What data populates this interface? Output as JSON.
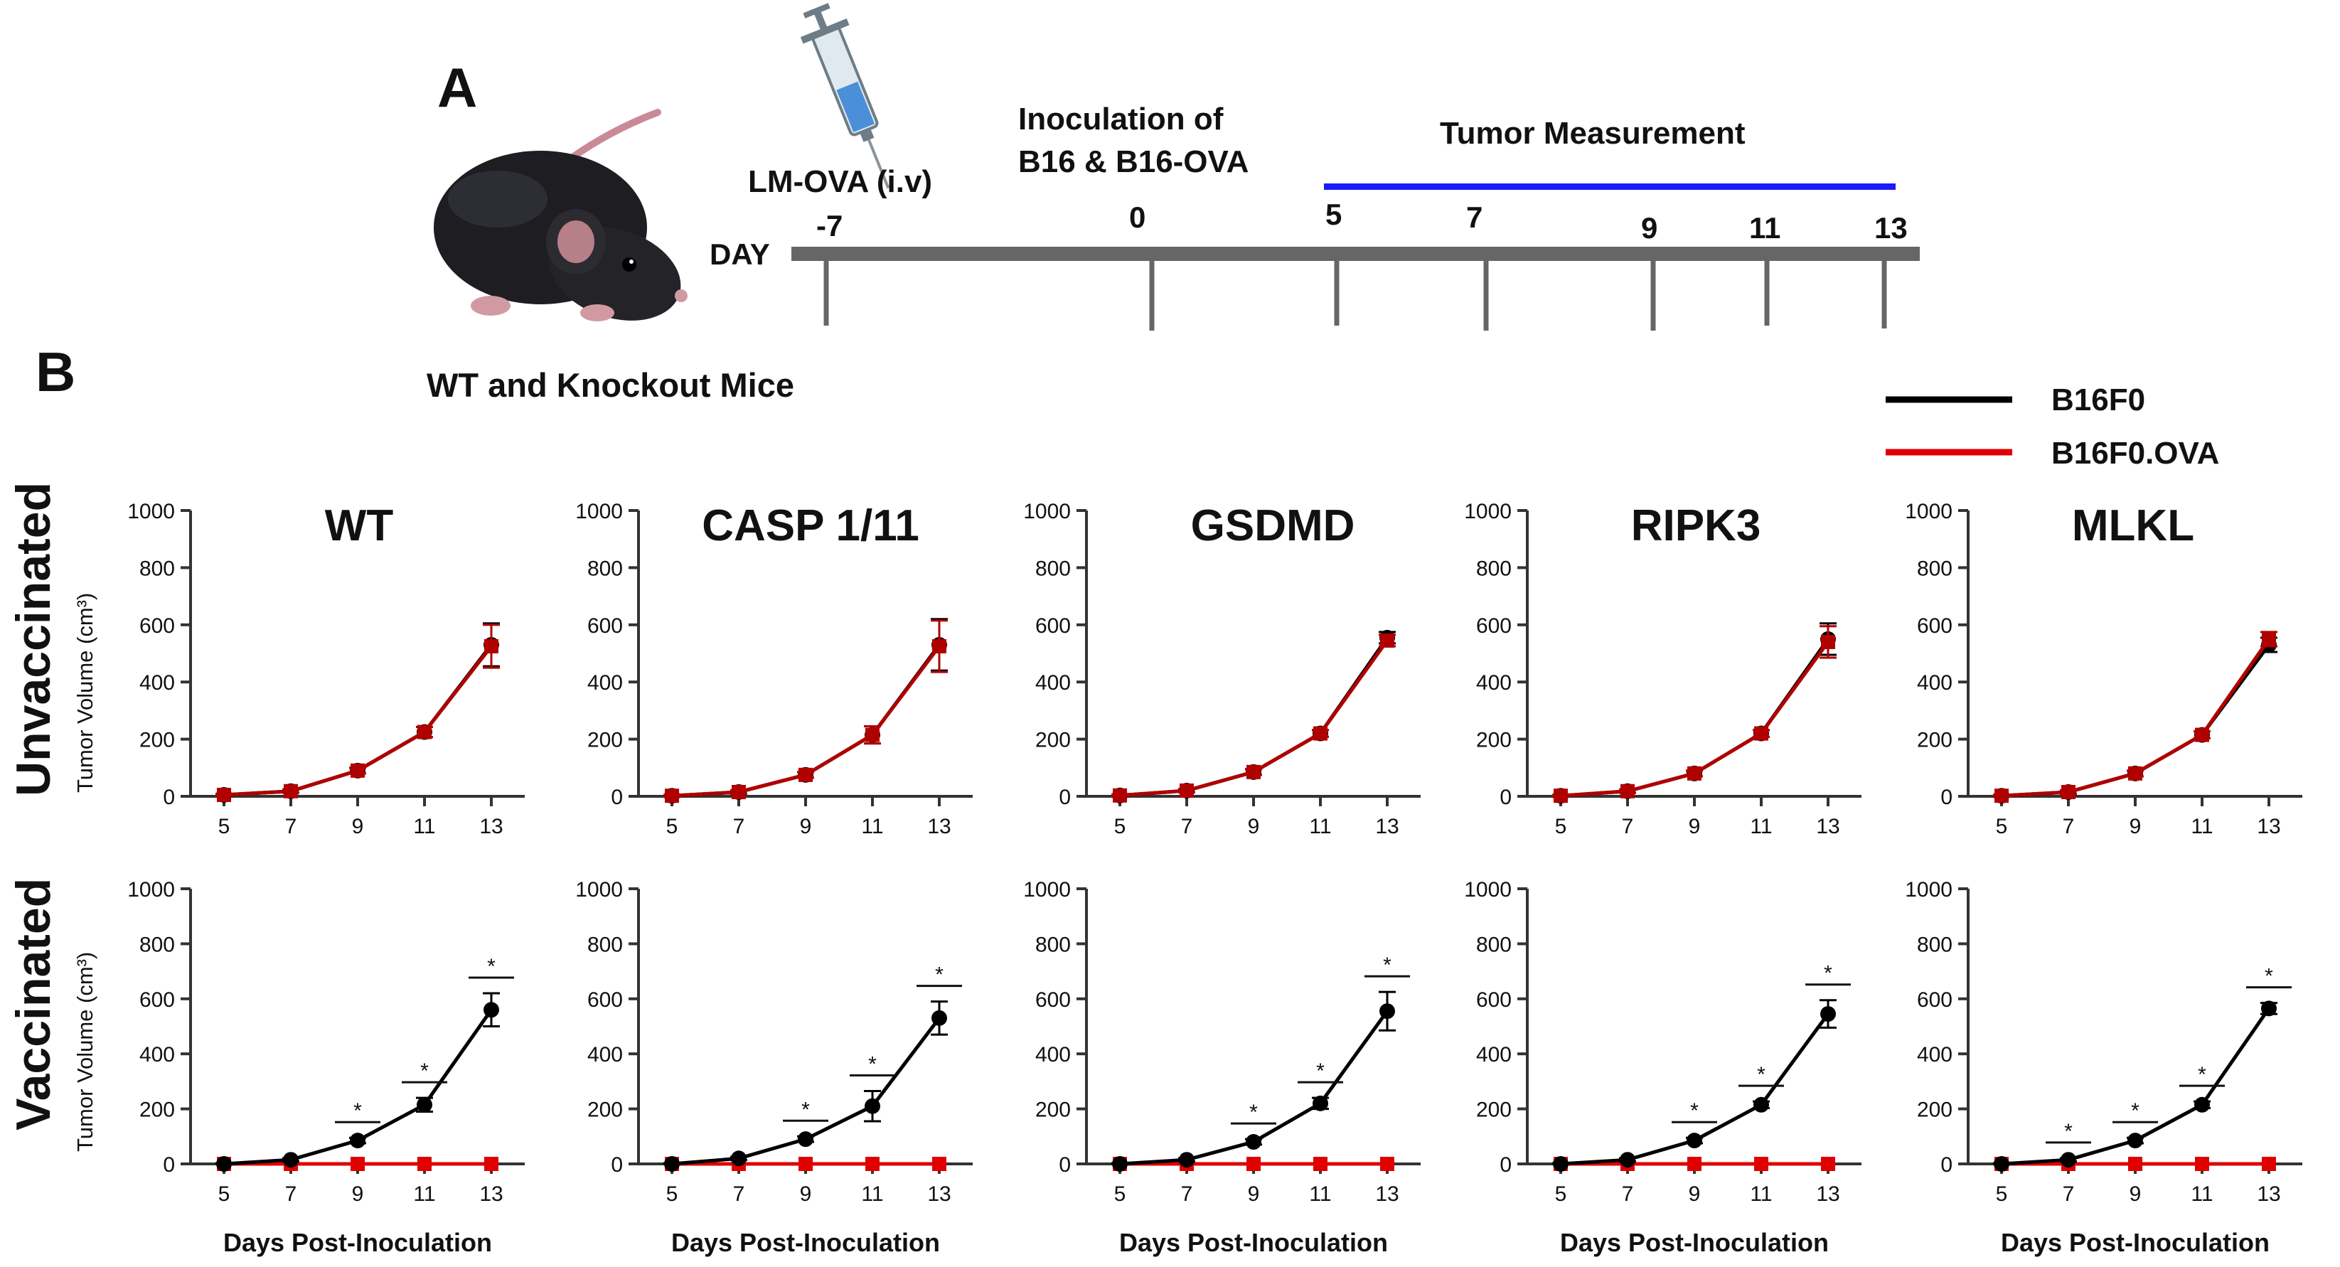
{
  "panel_a": {
    "letter": "A",
    "caption": "WT and Knockout Mice",
    "timeline": {
      "day_label": "DAY",
      "vaccine_label": "LM-OVA (i.v)",
      "inoculation_label_line1": "Inoculation of",
      "inoculation_label_line2": "B16 & B16-OVA",
      "measurement_label": "Tumor Measurement",
      "days": [
        "-7",
        "0",
        "5",
        "7",
        "9",
        "11",
        "13"
      ]
    }
  },
  "panel_b": {
    "letter": "B",
    "row_labels": [
      "Unvaccinated",
      "Vaccinated"
    ],
    "y_axis_label": "Tumor Volume (cm³)",
    "x_axis_label": "Days Post-Inoculation",
    "legend": [
      {
        "label": "B16F0",
        "color": "#000000"
      },
      {
        "label": "B16F0.OVA",
        "color": "#e00000"
      }
    ],
    "colors": {
      "b16f0": "#000000",
      "b16f0_ova": "#e00000",
      "b16f0_ova_unvaccinated": "#b00000",
      "timeline_bar": "#666666",
      "measurement_bar": "#1a1aff"
    },
    "star_symbol": "*"
  },
  "chart_data": [
    {
      "type": "line",
      "title": "WT",
      "group": "Unvaccinated",
      "x": [
        5,
        7,
        9,
        11,
        13
      ],
      "xlabel": "",
      "ylabel": "Tumor Volume (cm³)",
      "ylim": [
        0,
        1000
      ],
      "yticks": [
        0,
        200,
        400,
        600,
        800,
        1000
      ],
      "series": [
        {
          "name": "B16F0",
          "values": [
            5,
            18,
            90,
            225,
            530
          ],
          "errors": [
            3,
            6,
            10,
            18,
            75
          ]
        },
        {
          "name": "B16F0.OVA",
          "values": [
            5,
            18,
            90,
            225,
            525
          ],
          "errors": [
            3,
            6,
            10,
            18,
            75
          ]
        }
      ],
      "significant_at": []
    },
    {
      "type": "line",
      "title": "CASP 1/11",
      "group": "Unvaccinated",
      "x": [
        5,
        7,
        9,
        11,
        13
      ],
      "xlabel": "",
      "ylabel": "",
      "ylim": [
        0,
        1000
      ],
      "yticks": [
        0,
        200,
        400,
        600,
        800,
        1000
      ],
      "series": [
        {
          "name": "B16F0",
          "values": [
            2,
            15,
            75,
            215,
            530
          ],
          "errors": [
            3,
            6,
            10,
            30,
            90
          ]
        },
        {
          "name": "B16F0.OVA",
          "values": [
            2,
            15,
            75,
            215,
            525
          ],
          "errors": [
            3,
            6,
            10,
            30,
            90
          ]
        }
      ],
      "significant_at": []
    },
    {
      "type": "line",
      "title": "GSDMD",
      "group": "Unvaccinated",
      "x": [
        5,
        7,
        9,
        11,
        13
      ],
      "xlabel": "",
      "ylabel": "",
      "ylim": [
        0,
        1000
      ],
      "yticks": [
        0,
        200,
        400,
        600,
        800,
        1000
      ],
      "series": [
        {
          "name": "B16F0",
          "values": [
            3,
            20,
            85,
            220,
            555
          ],
          "errors": [
            3,
            6,
            10,
            12,
            20
          ]
        },
        {
          "name": "B16F0.OVA",
          "values": [
            3,
            20,
            85,
            220,
            545
          ],
          "errors": [
            3,
            6,
            10,
            12,
            20
          ]
        }
      ],
      "significant_at": []
    },
    {
      "type": "line",
      "title": "RIPK3",
      "group": "Unvaccinated",
      "x": [
        5,
        7,
        9,
        11,
        13
      ],
      "xlabel": "",
      "ylabel": "",
      "ylim": [
        0,
        1000
      ],
      "yticks": [
        0,
        200,
        400,
        600,
        800,
        1000
      ],
      "series": [
        {
          "name": "B16F0",
          "values": [
            2,
            18,
            80,
            220,
            550
          ],
          "errors": [
            3,
            6,
            10,
            12,
            55
          ]
        },
        {
          "name": "B16F0.OVA",
          "values": [
            2,
            18,
            80,
            220,
            540
          ],
          "errors": [
            3,
            6,
            10,
            12,
            55
          ]
        }
      ],
      "significant_at": []
    },
    {
      "type": "line",
      "title": "MLKL",
      "group": "Unvaccinated",
      "x": [
        5,
        7,
        9,
        11,
        13
      ],
      "xlabel": "",
      "ylabel": "",
      "ylim": [
        0,
        1000
      ],
      "yticks": [
        0,
        200,
        400,
        600,
        800,
        1000
      ],
      "series": [
        {
          "name": "B16F0",
          "values": [
            2,
            15,
            80,
            215,
            530
          ],
          "errors": [
            3,
            6,
            10,
            12,
            25
          ]
        },
        {
          "name": "B16F0.OVA",
          "values": [
            2,
            15,
            80,
            215,
            550
          ],
          "errors": [
            3,
            6,
            10,
            12,
            25
          ]
        }
      ],
      "significant_at": []
    },
    {
      "type": "line",
      "title": "",
      "group": "Vaccinated",
      "x": [
        5,
        7,
        9,
        11,
        13
      ],
      "xlabel": "Days Post-Inoculation",
      "ylabel": "Tumor Volume (cm³)",
      "ylim": [
        0,
        1000
      ],
      "yticks": [
        0,
        200,
        400,
        600,
        800,
        1000
      ],
      "series": [
        {
          "name": "B16F0",
          "values": [
            0,
            15,
            85,
            215,
            560
          ],
          "errors": [
            3,
            6,
            10,
            25,
            60
          ]
        },
        {
          "name": "B16F0.OVA",
          "values": [
            0,
            0,
            0,
            0,
            0
          ],
          "errors": [
            0,
            0,
            0,
            0,
            0
          ]
        }
      ],
      "significant_at": [
        9,
        11,
        13
      ]
    },
    {
      "type": "line",
      "title": "",
      "group": "Vaccinated",
      "x": [
        5,
        7,
        9,
        11,
        13
      ],
      "xlabel": "Days Post-Inoculation",
      "ylabel": "",
      "ylim": [
        0,
        1000
      ],
      "yticks": [
        0,
        200,
        400,
        600,
        800,
        1000
      ],
      "series": [
        {
          "name": "B16F0",
          "values": [
            0,
            20,
            90,
            210,
            530
          ],
          "errors": [
            3,
            6,
            10,
            55,
            60
          ]
        },
        {
          "name": "B16F0.OVA",
          "values": [
            0,
            0,
            0,
            0,
            0
          ],
          "errors": [
            0,
            0,
            0,
            0,
            0
          ]
        }
      ],
      "significant_at": [
        9,
        11,
        13
      ]
    },
    {
      "type": "line",
      "title": "",
      "group": "Vaccinated",
      "x": [
        5,
        7,
        9,
        11,
        13
      ],
      "xlabel": "Days Post-Inoculation",
      "ylabel": "",
      "ylim": [
        0,
        1000
      ],
      "yticks": [
        0,
        200,
        400,
        600,
        800,
        1000
      ],
      "series": [
        {
          "name": "B16F0",
          "values": [
            0,
            15,
            80,
            220,
            555
          ],
          "errors": [
            3,
            6,
            10,
            20,
            70
          ]
        },
        {
          "name": "B16F0.OVA",
          "values": [
            0,
            0,
            0,
            0,
            0
          ],
          "errors": [
            0,
            0,
            0,
            0,
            0
          ]
        }
      ],
      "significant_at": [
        9,
        11,
        13
      ]
    },
    {
      "type": "line",
      "title": "",
      "group": "Vaccinated",
      "x": [
        5,
        7,
        9,
        11,
        13
      ],
      "xlabel": "Days Post-Inoculation",
      "ylabel": "",
      "ylim": [
        0,
        1000
      ],
      "yticks": [
        0,
        200,
        400,
        600,
        800,
        1000
      ],
      "series": [
        {
          "name": "B16F0",
          "values": [
            0,
            15,
            85,
            215,
            545
          ],
          "errors": [
            3,
            6,
            10,
            12,
            50
          ]
        },
        {
          "name": "B16F0.OVA",
          "values": [
            0,
            0,
            0,
            0,
            0
          ],
          "errors": [
            0,
            0,
            0,
            0,
            0
          ]
        }
      ],
      "significant_at": [
        9,
        11,
        13
      ]
    },
    {
      "type": "line",
      "title": "",
      "group": "Vaccinated",
      "x": [
        5,
        7,
        9,
        11,
        13
      ],
      "xlabel": "Days Post-Inoculation",
      "ylabel": "",
      "ylim": [
        0,
        1000
      ],
      "yticks": [
        0,
        200,
        400,
        600,
        800,
        1000
      ],
      "series": [
        {
          "name": "B16F0",
          "values": [
            0,
            15,
            85,
            215,
            565
          ],
          "errors": [
            3,
            6,
            10,
            12,
            20
          ]
        },
        {
          "name": "B16F0.OVA",
          "values": [
            0,
            0,
            0,
            0,
            0
          ],
          "errors": [
            0,
            0,
            0,
            0,
            0
          ]
        }
      ],
      "significant_at": [
        7,
        9,
        11,
        13
      ]
    }
  ]
}
